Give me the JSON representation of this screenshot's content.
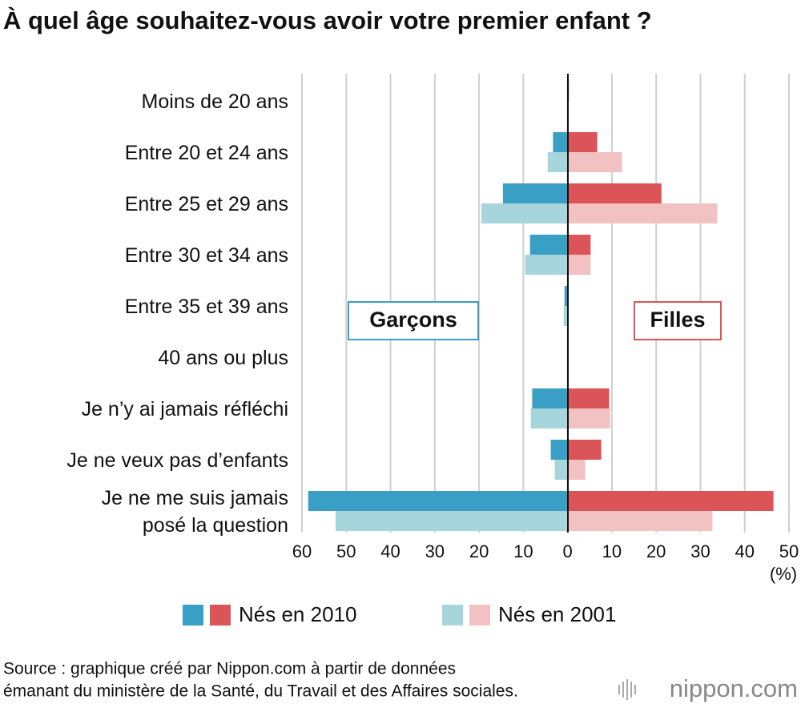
{
  "chart_data": {
    "type": "butterfly",
    "title": "À quel âge souhaitez-vous avoir votre premier enfant ?",
    "left_label": "Garçons",
    "right_label": "Filles",
    "categories": [
      "Moins de 20 ans",
      "Entre 20 et 24 ans",
      "Entre 25 et 29 ans",
      "Entre 30 et 34 ans",
      "Entre 35 et 39 ans",
      "40 ans ou plus",
      "Je n’y ai jamais réfléchi",
      "Je ne veux pas d’enfants",
      "Je ne me suis jamais posé la question"
    ],
    "series": [
      {
        "name": "Nés en 2010",
        "boys_color": "#3a9fc4",
        "girls_color": "#db5457",
        "boys": [
          0,
          3.3,
          14.6,
          8.5,
          0.7,
          0,
          8,
          3.8,
          58.6
        ],
        "girls": [
          0.3,
          6.7,
          21.2,
          5.2,
          0,
          0,
          9.4,
          7.6,
          46.5
        ]
      },
      {
        "name": "Nés en 2001",
        "boys_color": "#a6d5dc",
        "girls_color": "#f2c1c1",
        "boys": [
          0,
          4.5,
          19.5,
          9.6,
          0.9,
          0,
          8.3,
          2.9,
          52.4
        ],
        "girls": [
          0.2,
          12.3,
          33.8,
          5.2,
          0,
          0,
          9.6,
          4,
          32.7
        ]
      }
    ],
    "xlim": [
      -60,
      50
    ],
    "xticks": [
      {
        "value": -60,
        "label": "60"
      },
      {
        "value": -50,
        "label": "50"
      },
      {
        "value": -40,
        "label": "40"
      },
      {
        "value": -30,
        "label": "30"
      },
      {
        "value": -20,
        "label": "20"
      },
      {
        "value": -10,
        "label": "10"
      },
      0,
      10,
      20,
      30,
      40,
      50
    ],
    "x_unit": "(%)",
    "grid": true,
    "source": [
      "Source : graphique créé par Nippon.com à partir de données",
      "émanant du ministère de la Santé, du Travail et des Affaires sociales."
    ],
    "logo": "nippon.com"
  }
}
